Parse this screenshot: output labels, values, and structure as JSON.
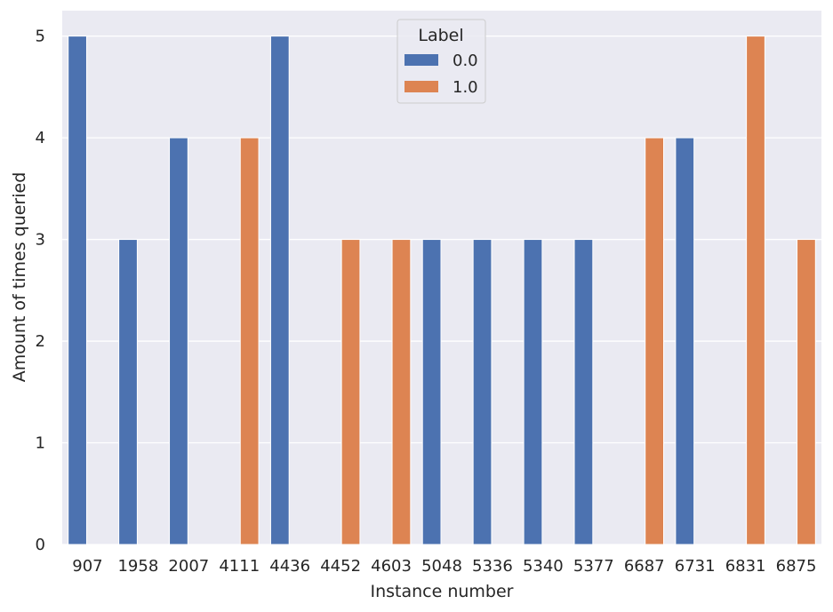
{
  "chart_data": {
    "type": "bar",
    "title": "",
    "xlabel": "Instance number",
    "ylabel": "Amount of times queried",
    "categories": [
      "907",
      "1958",
      "2007",
      "4111",
      "4436",
      "4452",
      "4603",
      "5048",
      "5336",
      "5340",
      "5377",
      "6687",
      "6731",
      "6831",
      "6875"
    ],
    "series": [
      {
        "name": "0.0",
        "color": "#4c72b0",
        "values": [
          5,
          3,
          4,
          0,
          5,
          0,
          0,
          3,
          3,
          3,
          3,
          0,
          4,
          0,
          0
        ]
      },
      {
        "name": "1.0",
        "color": "#dd8452",
        "values": [
          0,
          0,
          0,
          4,
          0,
          3,
          3,
          0,
          0,
          0,
          0,
          4,
          0,
          5,
          3
        ]
      }
    ],
    "yticks": [
      "0",
      "1",
      "2",
      "3",
      "4",
      "5"
    ],
    "ylim": [
      0,
      5.25
    ],
    "grid": true,
    "legend": {
      "title": "Label",
      "placement": "top-center"
    },
    "background_color": "#eaeaf2",
    "grid_color": "#ffffff"
  }
}
